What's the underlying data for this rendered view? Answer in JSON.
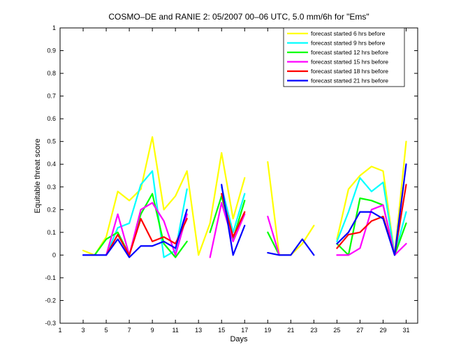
{
  "chart_data": {
    "type": "line",
    "title": "COSMO–DE and RANIE 2: 05/2007 00–06 UTC, 5.0 mm/6h for \"Ems\"",
    "xlabel": "Days",
    "ylabel": "Equitable threat score",
    "xlim": [
      1,
      32
    ],
    "ylim": [
      -0.3,
      1
    ],
    "xticks": [
      1,
      3,
      5,
      7,
      9,
      11,
      13,
      15,
      17,
      19,
      21,
      23,
      25,
      27,
      29,
      31
    ],
    "yticks": [
      -0.3,
      -0.2,
      -0.1,
      0,
      0.1,
      0.2,
      0.3,
      0.4,
      0.5,
      0.6,
      0.7,
      0.8,
      0.9,
      1
    ],
    "legend_position": "top-right",
    "x": [
      3,
      4,
      5,
      6,
      7,
      8,
      9,
      10,
      11,
      12,
      13,
      14,
      15,
      16,
      17,
      18,
      19,
      20,
      21,
      22,
      23,
      24,
      25,
      26,
      27,
      28,
      29,
      30,
      31
    ],
    "series": [
      {
        "name": "forecast started 6 hrs before",
        "color": "#ffff00",
        "values": [
          0.02,
          0.0,
          0.08,
          0.28,
          0.24,
          0.29,
          0.52,
          0.2,
          0.26,
          0.37,
          0.0,
          0.14,
          0.45,
          0.16,
          0.34,
          null,
          0.41,
          0.0,
          0.0,
          0.05,
          0.13,
          null,
          0.07,
          0.29,
          0.35,
          0.39,
          0.37,
          0.0,
          0.5
        ]
      },
      {
        "name": "forecast started 9 hrs before",
        "color": "#00ffff",
        "values": [
          null,
          null,
          0.0,
          0.12,
          0.14,
          0.31,
          0.37,
          -0.01,
          0.02,
          0.29,
          null,
          null,
          0.3,
          0.1,
          0.27,
          null,
          null,
          null,
          null,
          null,
          null,
          null,
          0.06,
          0.19,
          0.34,
          0.28,
          0.32,
          0.0,
          0.19
        ]
      },
      {
        "name": "forecast started 12 hrs before",
        "color": "#00ff00",
        "values": [
          null,
          0.0,
          0.07,
          0.1,
          0.0,
          0.18,
          0.27,
          0.05,
          -0.01,
          0.06,
          null,
          0.1,
          0.26,
          0.07,
          0.24,
          null,
          0.1,
          0.0,
          null,
          null,
          null,
          null,
          0.05,
          0.0,
          0.25,
          0.24,
          0.22,
          0.0,
          0.14
        ]
      },
      {
        "name": "forecast started 15 hrs before",
        "color": "#ff00ff",
        "values": [
          null,
          null,
          0.0,
          0.18,
          0.0,
          0.2,
          0.23,
          0.15,
          0.0,
          0.18,
          null,
          -0.01,
          0.23,
          0.06,
          0.18,
          null,
          0.17,
          0.0,
          null,
          null,
          null,
          null,
          0.0,
          0.0,
          0.03,
          0.2,
          0.22,
          0.0,
          0.05
        ]
      },
      {
        "name": "forecast started 18 hrs before",
        "color": "#ff0000",
        "values": [
          null,
          null,
          0.0,
          0.09,
          0.0,
          0.16,
          0.06,
          0.08,
          0.05,
          0.16,
          null,
          null,
          0.27,
          0.08,
          0.19,
          null,
          null,
          null,
          null,
          null,
          0.0,
          null,
          0.03,
          0.09,
          0.1,
          0.15,
          0.17,
          0.0,
          0.31
        ]
      },
      {
        "name": "forecast started 21 hrs before",
        "color": "#0000ff",
        "values": [
          0.0,
          0.0,
          0.0,
          0.07,
          -0.01,
          0.04,
          0.04,
          0.06,
          0.03,
          0.2,
          null,
          null,
          0.31,
          0.0,
          0.13,
          null,
          0.01,
          0.0,
          0.0,
          0.07,
          0.0,
          null,
          0.05,
          0.1,
          0.19,
          0.19,
          0.16,
          0.0,
          0.4
        ]
      }
    ]
  }
}
